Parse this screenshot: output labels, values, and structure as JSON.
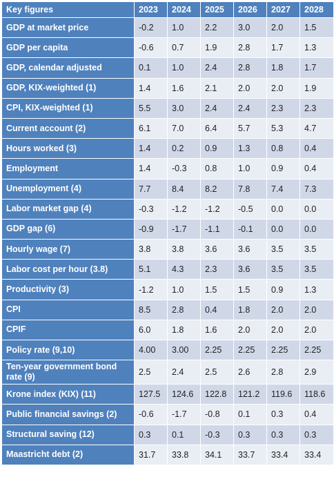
{
  "table": {
    "header": [
      "Key figures",
      "2023",
      "2024",
      "2025",
      "2026",
      "2027",
      "2028"
    ],
    "rows": [
      {
        "label": "GDP at market price",
        "values": [
          "-0.2",
          "1.0",
          "2.2",
          "3.0",
          "2.0",
          "1.5"
        ]
      },
      {
        "label": "GDP per capita",
        "values": [
          "-0.6",
          "0.7",
          "1.9",
          "2.8",
          "1.7",
          "1.3"
        ]
      },
      {
        "label": "GDP, calendar adjusted",
        "values": [
          "0.1",
          "1.0",
          "2.4",
          "2.8",
          "1.8",
          "1.7"
        ]
      },
      {
        "label": "GDP, KIX-weighted (1)",
        "values": [
          "1.4",
          "1.6",
          "2.1",
          "2.0",
          "2.0",
          "1.9"
        ]
      },
      {
        "label": "CPI, KIX-weighted (1)",
        "values": [
          "5.5",
          "3.0",
          "2.4",
          "2.4",
          "2.3",
          "2.3"
        ]
      },
      {
        "label": "Current account (2)",
        "values": [
          "6.1",
          "7.0",
          "6.4",
          "5.7",
          "5.3",
          "4.7"
        ]
      },
      {
        "label": "Hours worked (3)",
        "values": [
          "1.4",
          "0.2",
          "0.9",
          "1.3",
          "0.8",
          "0.4"
        ]
      },
      {
        "label": "Employment",
        "values": [
          "1.4",
          "-0.3",
          "0.8",
          "1.0",
          "0.9",
          "0.4"
        ]
      },
      {
        "label": "Unemployment (4)",
        "values": [
          "7.7",
          "8.4",
          "8.2",
          "7.8",
          "7.4",
          "7.3"
        ]
      },
      {
        "label": "Labor market gap (4)",
        "values": [
          "-0.3",
          "-1.2",
          "-1.2",
          "-0.5",
          "0.0",
          "0.0"
        ]
      },
      {
        "label": "GDP gap (6)",
        "values": [
          "-0.9",
          "-1.7",
          "-1.1",
          "-0.1",
          "0.0",
          "0.0"
        ]
      },
      {
        "label": "Hourly wage (7)",
        "values": [
          "3.8",
          "3.8",
          "3.6",
          "3.6",
          "3.5",
          "3.5"
        ]
      },
      {
        "label": "Labor cost per hour (3.8)",
        "values": [
          "5.1",
          "4.3",
          "2.3",
          "3.6",
          "3.5",
          "3.5"
        ]
      },
      {
        "label": "Productivity (3)",
        "values": [
          "-1.2",
          "1.0",
          "1.5",
          "1.5",
          "0.9",
          "1.3"
        ]
      },
      {
        "label": "CPI",
        "values": [
          "8.5",
          "2.8",
          "0.4",
          "1.8",
          "2.0",
          "2.0"
        ]
      },
      {
        "label": "CPIF",
        "values": [
          "6.0",
          "1.8",
          "1.6",
          "2.0",
          "2.0",
          "2.0"
        ]
      },
      {
        "label": "Policy rate (9,10)",
        "values": [
          "4.00",
          "3.00",
          "2.25",
          "2.25",
          "2.25",
          "2.25"
        ]
      },
      {
        "label": "Ten-year government bond rate (9)",
        "values": [
          "2.5",
          "2.4",
          "2.5",
          "2.6",
          "2.8",
          "2.9"
        ]
      },
      {
        "label": "Krone index (KIX) (11)",
        "values": [
          "127.5",
          "124.6",
          "122.8",
          "121.2",
          "119.6",
          "118.6"
        ]
      },
      {
        "label": "Public financial savings (2)",
        "values": [
          "-0.6",
          "-1.7",
          "-0.8",
          "0.1",
          "0.3",
          "0.4"
        ]
      },
      {
        "label": "Structural saving (12)",
        "values": [
          "0.3",
          "0.1",
          "-0.3",
          "0.3",
          "0.3",
          "0.3"
        ]
      },
      {
        "label": "Maastricht debt (2)",
        "values": [
          "31.7",
          "33.8",
          "34.1",
          "33.7",
          "33.4",
          "33.4"
        ]
      }
    ]
  }
}
